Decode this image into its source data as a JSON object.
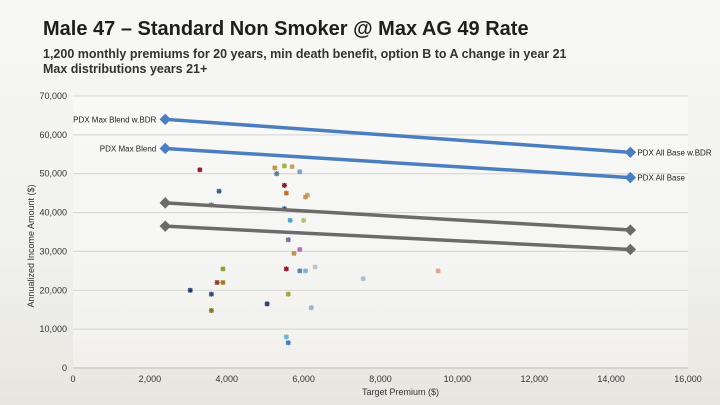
{
  "title": "Male 47 – Standard Non Smoker @ Max AG 49 Rate",
  "subtitle_lines": [
    "1,200 monthly premiums for 20 years, min death benefit, option B to A change in year 21",
    "Max distributions years 21+"
  ],
  "chart_data": {
    "type": "scatter",
    "xlabel": "Target Premium ($)",
    "ylabel": "Annualized Income Amount ($)",
    "xlim": [
      0,
      16000
    ],
    "ylim": [
      0,
      70000
    ],
    "x_ticks": [
      0,
      2000,
      4000,
      6000,
      8000,
      10000,
      12000,
      14000,
      16000
    ],
    "x_tick_labels": [
      "0",
      "2,000",
      "4,000",
      "6,000",
      "8,000",
      "10,000",
      "12,000",
      "14,000",
      "16,000"
    ],
    "y_ticks": [
      0,
      10000,
      20000,
      30000,
      40000,
      50000,
      60000,
      70000
    ],
    "y_tick_labels": [
      "0",
      "10,000",
      "20,000",
      "30,000",
      "40,000",
      "50,000",
      "60,000",
      "70,000"
    ],
    "grid": "horizontal",
    "series": [
      {
        "name": "PDX Max Blend w.BDR",
        "color": "#4a7ebf",
        "marker": "diamond",
        "points": [
          [
            2400,
            64000
          ],
          [
            14500,
            55500
          ]
        ]
      },
      {
        "name": "PDX Max Blend",
        "color": "#4a7ebf",
        "marker": "diamond",
        "points": [
          [
            2400,
            56500
          ],
          [
            14500,
            49000
          ]
        ]
      },
      {
        "name": "",
        "color": "#6b6b6b",
        "marker": "diamond",
        "points": [
          [
            2400,
            42500
          ],
          [
            14500,
            35500
          ]
        ]
      },
      {
        "name": "",
        "color": "#6b6b6b",
        "marker": "diamond",
        "points": [
          [
            2400,
            36500
          ],
          [
            14500,
            30500
          ]
        ]
      }
    ],
    "line_labels": [
      {
        "text": "PDX Max Blend w.BDR",
        "x": 2400,
        "y": 64000,
        "side": "left"
      },
      {
        "text": "PDX Max Blend",
        "x": 2400,
        "y": 56500,
        "side": "left"
      },
      {
        "text": "PDX All Base w.BDR",
        "x": 14500,
        "y": 55500,
        "side": "right"
      },
      {
        "text": "PDX All Base",
        "x": 14500,
        "y": 49000,
        "side": "right"
      }
    ],
    "scatter_points": [
      {
        "x": 3300,
        "y": 51000,
        "color": "#8b1a2b"
      },
      {
        "x": 3800,
        "y": 45500,
        "color": "#3a5a8c"
      },
      {
        "x": 3600,
        "y": 42000,
        "color": "#4a8ab0"
      },
      {
        "x": 3900,
        "y": 25500,
        "color": "#8a9a3a"
      },
      {
        "x": 3750,
        "y": 22000,
        "color": "#9b3a2a"
      },
      {
        "x": 3900,
        "y": 22000,
        "color": "#a07a2a"
      },
      {
        "x": 3050,
        "y": 20000,
        "color": "#2a3a6a"
      },
      {
        "x": 3600,
        "y": 19000,
        "color": "#3a4a7a"
      },
      {
        "x": 3600,
        "y": 14800,
        "color": "#8a7a2a"
      },
      {
        "x": 5250,
        "y": 51500,
        "color": "#c09040"
      },
      {
        "x": 5500,
        "y": 52000,
        "color": "#a0b040"
      },
      {
        "x": 5300,
        "y": 50000,
        "color": "#5a7aa0"
      },
      {
        "x": 5700,
        "y": 51800,
        "color": "#c0a060"
      },
      {
        "x": 5900,
        "y": 50500,
        "color": "#80a0c0"
      },
      {
        "x": 5500,
        "y": 47000,
        "color": "#8b1a2b"
      },
      {
        "x": 5550,
        "y": 45000,
        "color": "#c07030"
      },
      {
        "x": 6100,
        "y": 44500,
        "color": "#d0a060"
      },
      {
        "x": 6050,
        "y": 44000,
        "color": "#c09060"
      },
      {
        "x": 5500,
        "y": 41000,
        "color": "#3a5a9c"
      },
      {
        "x": 5650,
        "y": 38000,
        "color": "#4aa0c0"
      },
      {
        "x": 6000,
        "y": 38000,
        "color": "#b0c070"
      },
      {
        "x": 5600,
        "y": 33000,
        "color": "#7a6aa0"
      },
      {
        "x": 5900,
        "y": 30500,
        "color": "#b070b0"
      },
      {
        "x": 5750,
        "y": 29500,
        "color": "#c09050"
      },
      {
        "x": 5550,
        "y": 25500,
        "color": "#8b1a2b"
      },
      {
        "x": 5900,
        "y": 25000,
        "color": "#5a80b0"
      },
      {
        "x": 6050,
        "y": 25000,
        "color": "#80b0d0"
      },
      {
        "x": 6300,
        "y": 26000,
        "color": "#c0c0c0"
      },
      {
        "x": 7550,
        "y": 23000,
        "color": "#a0c0d0"
      },
      {
        "x": 9500,
        "y": 25000,
        "color": "#e0a090"
      },
      {
        "x": 5600,
        "y": 19000,
        "color": "#a0a040"
      },
      {
        "x": 5050,
        "y": 16500,
        "color": "#2a3a6a"
      },
      {
        "x": 6200,
        "y": 15500,
        "color": "#9ab0d0"
      },
      {
        "x": 5550,
        "y": 8000,
        "color": "#70b0d0"
      },
      {
        "x": 5600,
        "y": 6500,
        "color": "#4a7ab0"
      }
    ]
  }
}
